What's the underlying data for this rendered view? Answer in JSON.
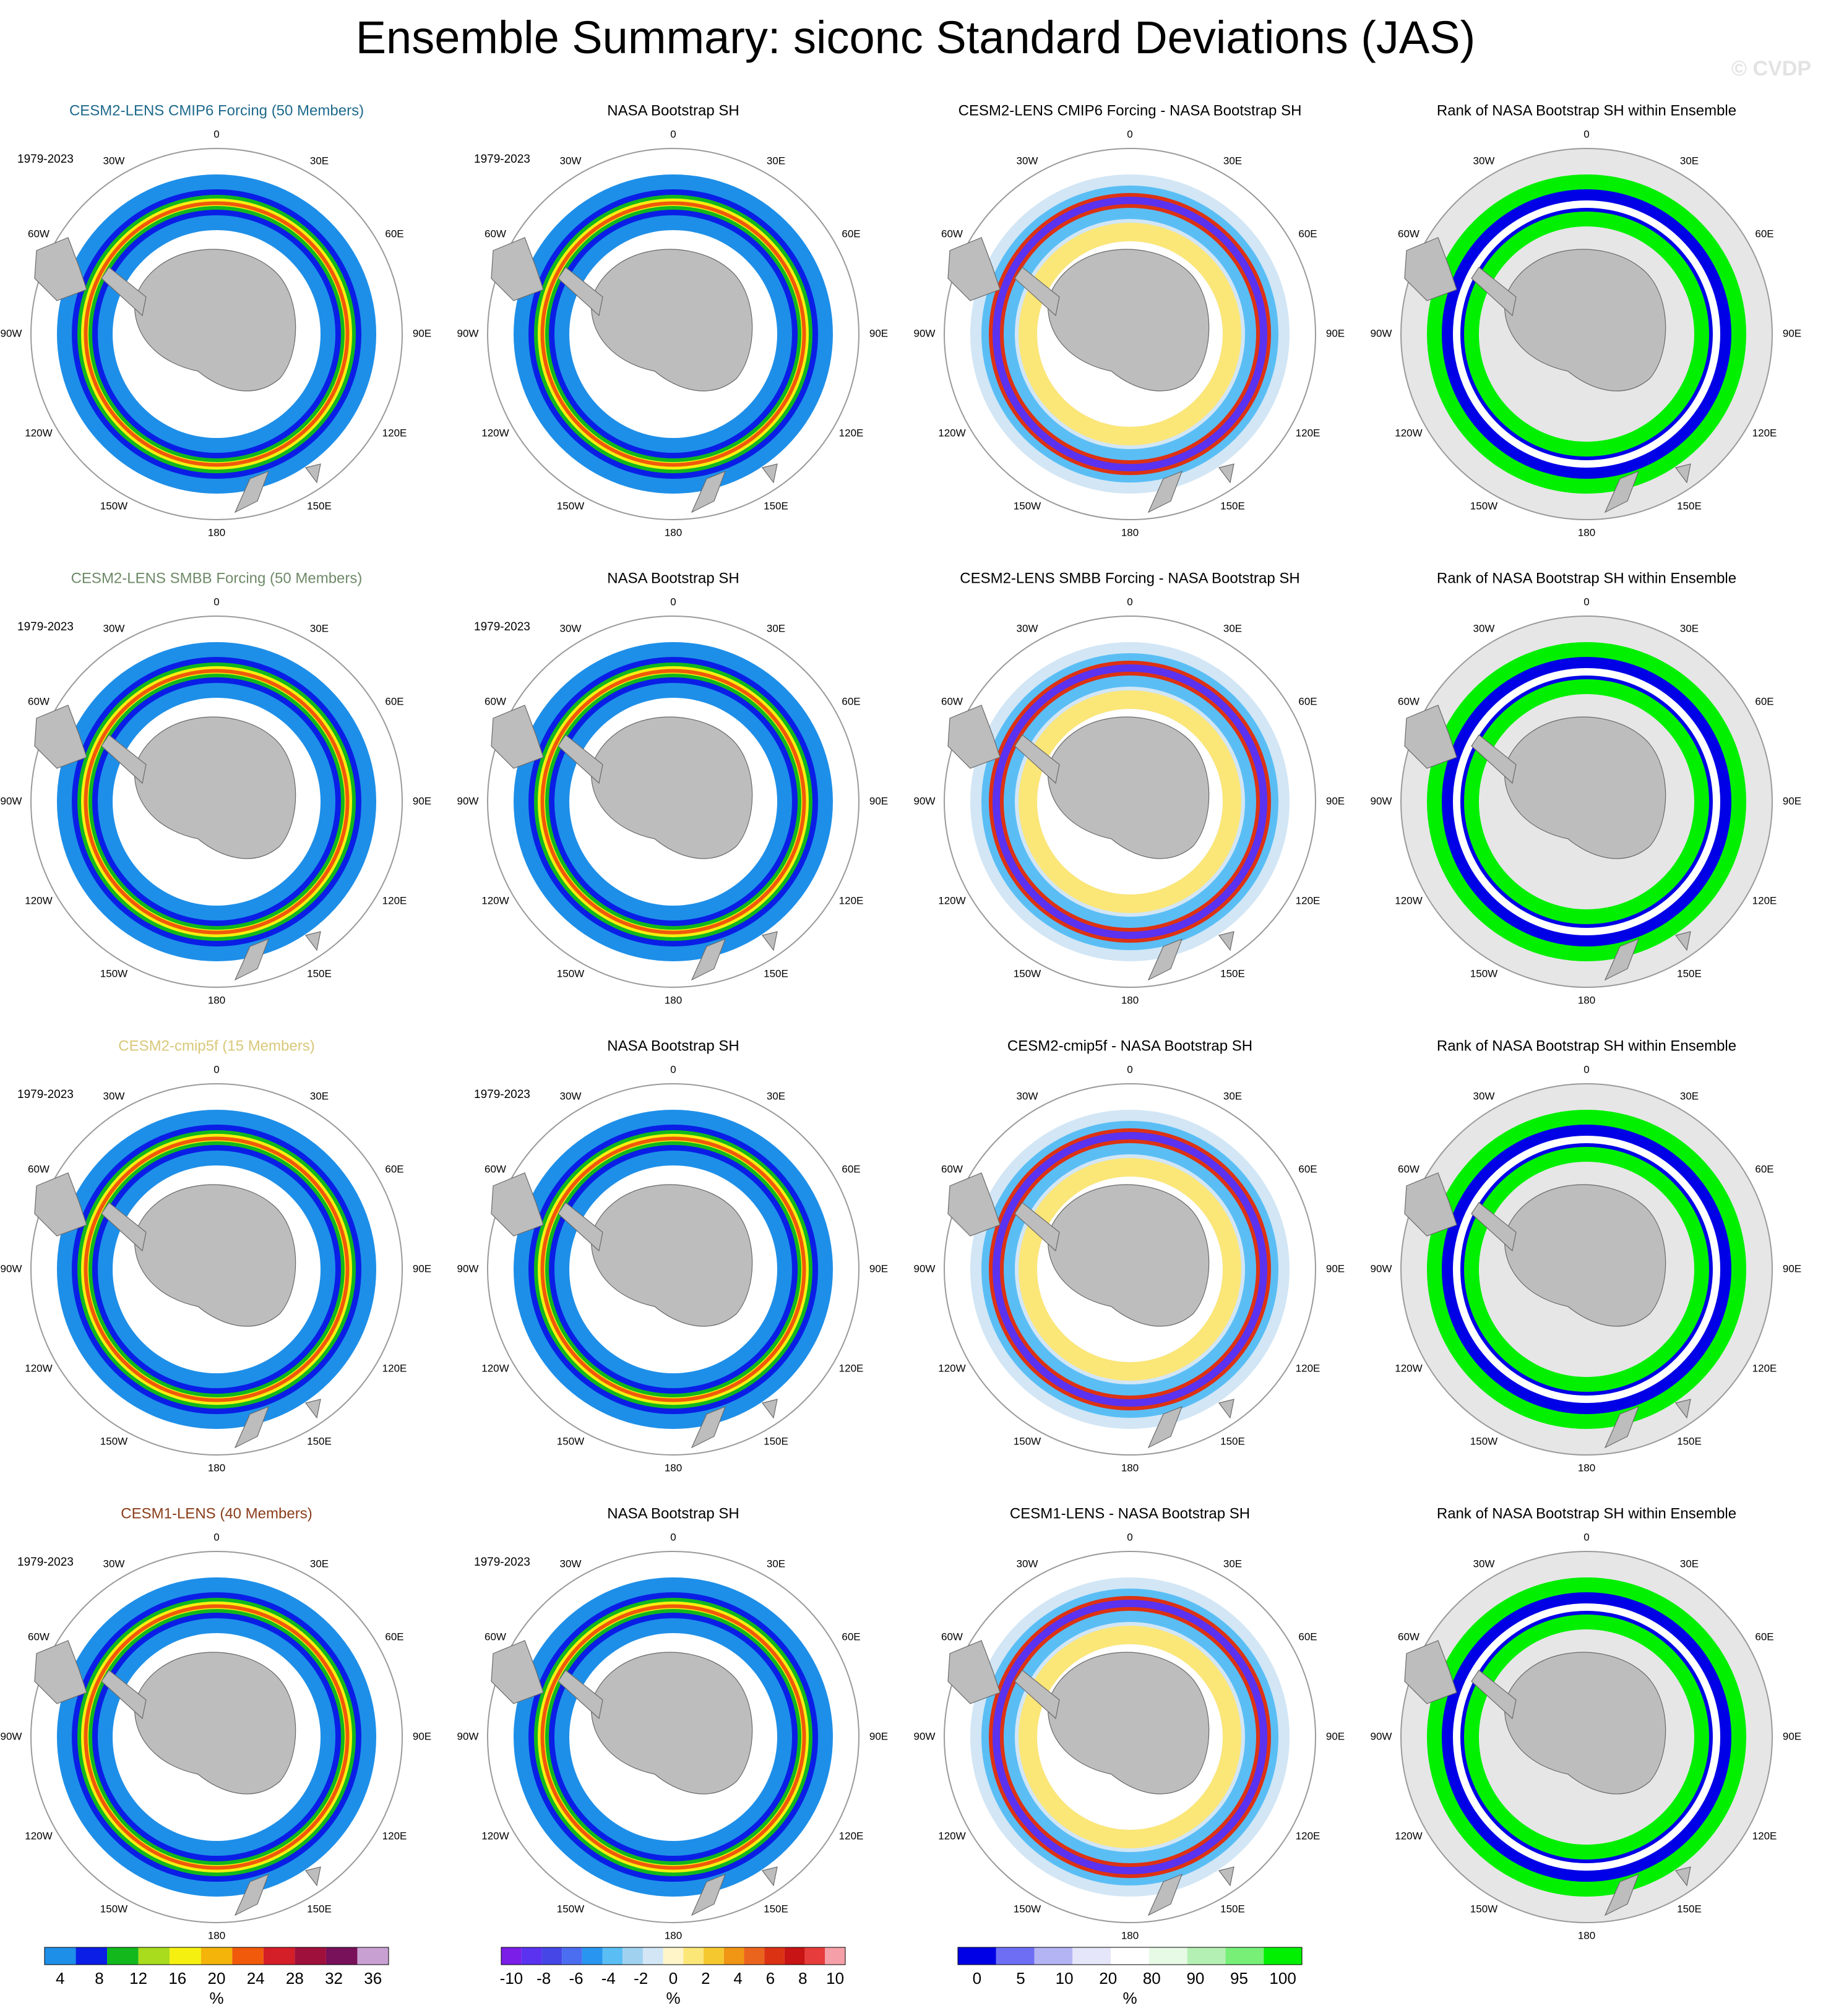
{
  "title": "Ensemble Summary: siconc Standard Deviations (JAS)",
  "watermark": "© CVDP",
  "period_label": "1979-2023",
  "lon_labels": [
    "0",
    "30E",
    "60E",
    "90E",
    "120E",
    "150E",
    "180",
    "150W",
    "120W",
    "90W",
    "60W",
    "30W"
  ],
  "colors": {
    "title_row1": "#1f6a8c",
    "title_row2": "#6f8a68",
    "title_row3": "#d9c87a",
    "title_row4": "#8a3d1a",
    "land": "#bdbdbd",
    "rank_background": "#e6e6e6"
  },
  "rows": [
    {
      "model": "CESM2-LENS CMIP6 Forcing (50 Members)",
      "obs": "NASA Bootstrap SH",
      "diff": "CESM2-LENS CMIP6 Forcing - NASA Bootstrap SH",
      "rank": "Rank of NASA Bootstrap SH within Ensemble"
    },
    {
      "model": "CESM2-LENS SMBB Forcing (50 Members)",
      "obs": "NASA Bootstrap SH",
      "diff": "CESM2-LENS SMBB Forcing - NASA Bootstrap SH",
      "rank": "Rank of NASA Bootstrap SH within Ensemble"
    },
    {
      "model": "CESM2-cmip5f (15 Members)",
      "obs": "NASA Bootstrap SH",
      "diff": "CESM2-cmip5f - NASA Bootstrap SH",
      "rank": "Rank of NASA Bootstrap SH within Ensemble"
    },
    {
      "model": "CESM1-LENS (40 Members)",
      "obs": "NASA Bootstrap SH",
      "diff": "CESM1-LENS - NASA Bootstrap SH",
      "rank": "Rank of NASA Bootstrap SH within Ensemble"
    }
  ],
  "chart_data": [
    {
      "type": "heatmap",
      "name": "standard deviation colorbar",
      "unit": "%",
      "tick_labels": [
        "4",
        "8",
        "12",
        "16",
        "20",
        "24",
        "28",
        "32",
        "36"
      ],
      "colors": [
        "#1e8fe8",
        "#0a1ee6",
        "#12b81c",
        "#a8dc1c",
        "#f5f010",
        "#f5b40a",
        "#f05a0a",
        "#d41e28",
        "#a0103c",
        "#78105a",
        "#c8a0d2"
      ]
    },
    {
      "type": "heatmap",
      "name": "difference colorbar",
      "unit": "%",
      "tick_labels": [
        "-10",
        "-8",
        "-6",
        "-4",
        "-2",
        "0",
        "2",
        "4",
        "6",
        "8",
        "10"
      ],
      "colors": [
        "#7a1ee8",
        "#5a32f0",
        "#4646e6",
        "#4b6ef0",
        "#2896f0",
        "#5abef5",
        "#a0d2f0",
        "#d2e6f5",
        "#fff5c8",
        "#fbe678",
        "#f5c830",
        "#f09614",
        "#eb641e",
        "#dc3214",
        "#c81414",
        "#e63c3c",
        "#f5a0a8"
      ]
    },
    {
      "type": "heatmap",
      "name": "rank colorbar",
      "unit": "%",
      "tick_labels": [
        "0",
        "5",
        "10",
        "20",
        "80",
        "90",
        "95",
        "100"
      ],
      "colors": [
        "#0000e6",
        "#6e6ef5",
        "#b4b4f5",
        "#e6e6fa",
        "#ffffff",
        "#e6fae6",
        "#b4f0b4",
        "#78f078",
        "#00f000"
      ]
    }
  ]
}
